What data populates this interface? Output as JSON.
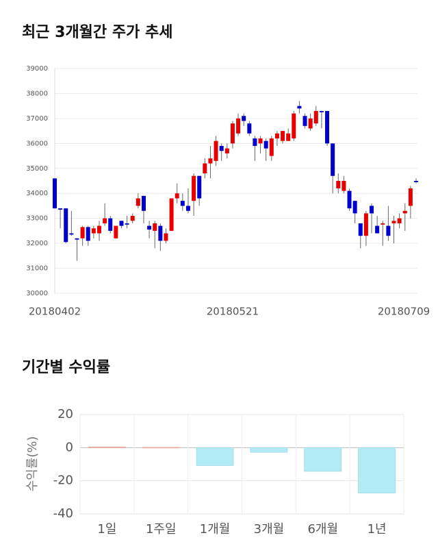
{
  "chart_data": [
    {
      "type": "candlestick",
      "title": "최근 3개월간 주가 추세",
      "categories": [
        "20180402",
        null,
        null,
        null,
        null,
        null,
        null,
        null,
        null,
        null,
        null,
        null,
        null,
        null,
        null,
        null,
        null,
        null,
        null,
        null,
        null,
        null,
        null,
        null,
        null,
        null,
        null,
        null,
        null,
        null,
        null,
        null,
        "20180521",
        null,
        null,
        null,
        null,
        null,
        null,
        null,
        null,
        null,
        null,
        null,
        null,
        null,
        null,
        null,
        null,
        null,
        null,
        null,
        null,
        null,
        null,
        null,
        null,
        null,
        null,
        null,
        null,
        null,
        null,
        "20180709",
        null,
        null
      ],
      "open": [
        34600,
        33400,
        33400,
        32400,
        32200,
        32200,
        32650,
        32400,
        32400,
        32800,
        33000,
        32200,
        32900,
        32800,
        32900,
        33500,
        33900,
        32700,
        32500,
        32700,
        32100,
        32500,
        33800,
        33700,
        33500,
        33700,
        34700,
        34800,
        35200,
        35300,
        35900,
        35600,
        36000,
        36400,
        37100,
        36800,
        36200,
        36000,
        36100,
        35500,
        36200,
        36100,
        36100,
        36200,
        37500,
        37100,
        36600,
        36800,
        37300,
        37300,
        36000,
        34200,
        34100,
        34100,
        33700,
        32800,
        32300,
        33500,
        32700,
        32750,
        32700,
        32800,
        32800,
        33200,
        33500,
        34500
      ],
      "high": [
        34600,
        33400,
        33400,
        33300,
        32200,
        32700,
        32700,
        32700,
        32900,
        33600,
        33100,
        32700,
        32900,
        33100,
        33200,
        34000,
        33900,
        32900,
        32900,
        32800,
        32600,
        33800,
        34400,
        34000,
        34200,
        34800,
        34700,
        35400,
        35900,
        36300,
        36000,
        36000,
        36900,
        37200,
        37200,
        36900,
        36300,
        36300,
        36200,
        36300,
        36500,
        36500,
        36600,
        37300,
        37700,
        37200,
        37200,
        37500,
        37300,
        37300,
        36000,
        34800,
        34700,
        34200,
        33700,
        32800,
        33300,
        33600,
        33100,
        32900,
        33500,
        33100,
        33200,
        33600,
        34300,
        34600
      ],
      "low": [
        33400,
        32600,
        32000,
        32300,
        31300,
        31900,
        31900,
        32200,
        32100,
        32700,
        32400,
        32200,
        32600,
        32600,
        32800,
        33400,
        32800,
        32200,
        31800,
        31700,
        32000,
        32500,
        33600,
        33300,
        33200,
        33100,
        33500,
        34600,
        34600,
        35100,
        35300,
        35400,
        35800,
        36300,
        36700,
        36300,
        35300,
        35600,
        35300,
        35300,
        35900,
        36000,
        36100,
        36100,
        37200,
        36600,
        36500,
        36700,
        36600,
        35900,
        34000,
        34000,
        34000,
        33300,
        32800,
        31800,
        31900,
        32400,
        32400,
        31900,
        32100,
        32000,
        32600,
        32500,
        33000,
        34400
      ],
      "close": [
        33400,
        33350,
        32050,
        32350,
        32150,
        32650,
        32100,
        32600,
        32700,
        33000,
        32500,
        32700,
        32700,
        32750,
        33100,
        33800,
        33300,
        32550,
        32800,
        32100,
        32400,
        33800,
        34000,
        33500,
        33300,
        34700,
        33800,
        35200,
        35400,
        36100,
        35700,
        35800,
        36800,
        37000,
        36900,
        36400,
        35900,
        36200,
        35800,
        36200,
        36400,
        36500,
        36400,
        37200,
        37400,
        36700,
        37000,
        37300,
        37250,
        36000,
        34700,
        34500,
        34500,
        33400,
        33200,
        32300,
        33200,
        33200,
        32400,
        32800,
        32300,
        32900,
        33000,
        33300,
        34200,
        34450
      ],
      "up_color": "#e60000",
      "down_color": "#0000cc",
      "ylim": [
        30000,
        39000
      ],
      "yticks": [
        30000,
        31000,
        32000,
        33000,
        34000,
        35000,
        36000,
        37000,
        38000,
        39000
      ],
      "grid": true
    },
    {
      "type": "bar",
      "title": "기간별 수익률",
      "ylabel": "수익률(%)",
      "categories": [
        "1일",
        "1주일",
        "1개월",
        "3개월",
        "6개월",
        "1년"
      ],
      "values": [
        0.5,
        0.2,
        -10.8,
        -2.8,
        -14.3,
        -27.4
      ],
      "positive_color": "#f5b7a6",
      "negative_color": "#b2ebf4",
      "ylim": [
        -40,
        20
      ],
      "yticks": [
        -40,
        -20,
        0,
        20
      ],
      "grid": true
    }
  ]
}
